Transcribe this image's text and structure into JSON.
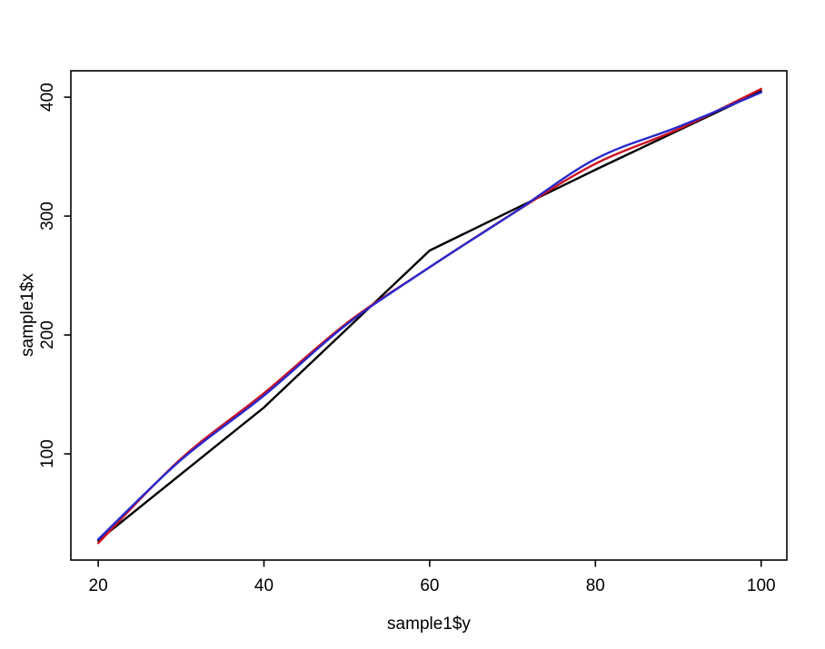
{
  "figure": {
    "background": "#ffffff",
    "text_color": "#000000"
  },
  "chart_data": {
    "type": "line",
    "title": "",
    "xlabel": "sample1$y",
    "ylabel": "sample1$x",
    "x_ticks": [
      20,
      40,
      60,
      80,
      100
    ],
    "y_ticks": [
      100,
      200,
      300,
      400
    ],
    "xlim": [
      16.7,
      103.1
    ],
    "ylim": [
      10.7,
      422.2
    ],
    "grid": false,
    "legend": "none",
    "box": true,
    "series": [
      {
        "name": "black-line",
        "color": "#000000",
        "smooth": false,
        "x": [
          20,
          40,
          60,
          80,
          100
        ],
        "y": [
          27,
          139,
          271,
          339,
          405
        ]
      },
      {
        "name": "red-line",
        "color": "#cc1122",
        "smooth": true,
        "x": [
          20,
          30,
          40,
          50,
          60,
          70,
          80,
          90,
          100
        ],
        "y": [
          25,
          96,
          151,
          210,
          257,
          302,
          344,
          373,
          407
        ]
      },
      {
        "name": "blue-line",
        "color": "#2828cc",
        "smooth": true,
        "x": [
          20,
          30,
          40,
          50,
          60,
          70,
          80,
          90,
          100
        ],
        "y": [
          28,
          95,
          149,
          209,
          257,
          302,
          348,
          375,
          404
        ]
      }
    ]
  }
}
